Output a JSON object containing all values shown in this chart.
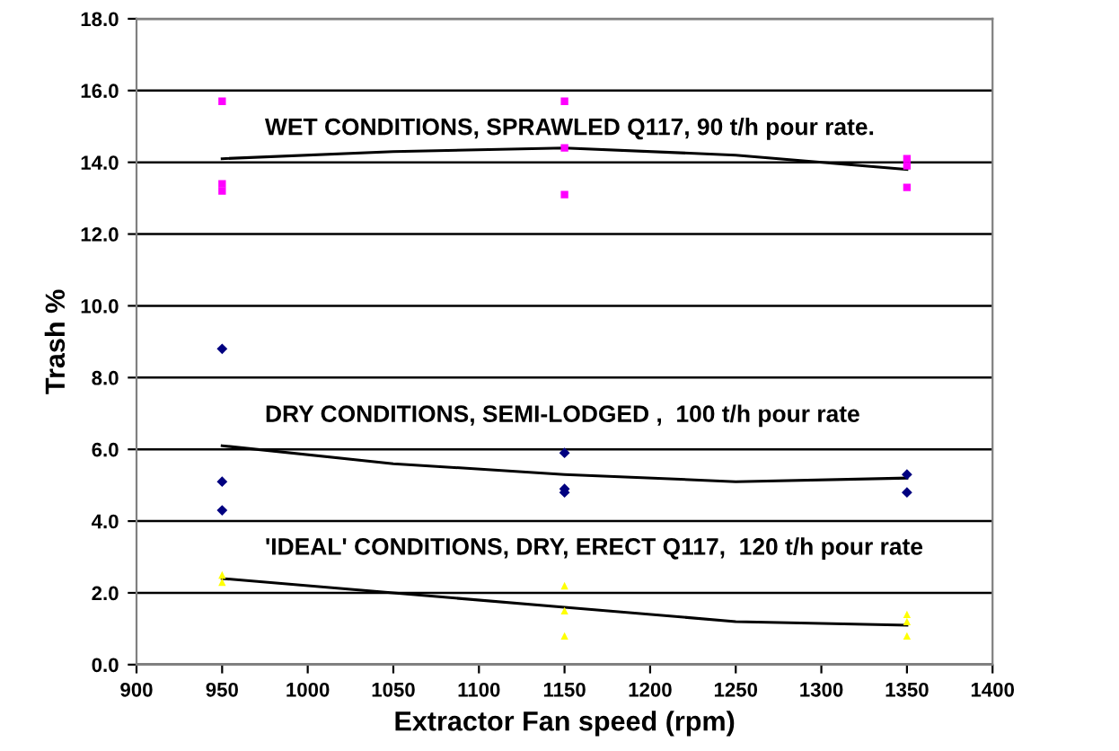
{
  "chart_data": {
    "type": "scatter",
    "xlabel": "Extractor Fan speed (rpm)",
    "ylabel": "Trash %",
    "xlim": [
      900,
      1400
    ],
    "xticks": [
      900,
      950,
      1000,
      1050,
      1100,
      1150,
      1200,
      1250,
      1300,
      1350,
      1400
    ],
    "ylim": [
      0,
      18
    ],
    "yticks": [
      {
        "value": 0,
        "label": "0.0"
      },
      {
        "value": 2,
        "label": "2.0"
      },
      {
        "value": 4,
        "label": "4.0"
      },
      {
        "value": 6,
        "label": "6.0"
      },
      {
        "value": 8,
        "label": "8.0"
      },
      {
        "value": 10,
        "label": "10.0"
      },
      {
        "value": 12,
        "label": "12.0"
      },
      {
        "value": 14,
        "label": "14.0"
      },
      {
        "value": 16,
        "label": "16.0"
      },
      {
        "value": 18,
        "label": "18.0"
      }
    ],
    "grid": "y",
    "legend": false,
    "series": [
      {
        "marker": "square",
        "color": "#ff00ff",
        "x": [
          950,
          950,
          950,
          1150,
          1150,
          1150,
          1350,
          1350,
          1350
        ],
        "values": [
          15.7,
          13.4,
          13.2,
          15.7,
          14.4,
          13.1,
          14.1,
          13.9,
          13.3
        ]
      },
      {
        "marker": "diamond",
        "color": "#000080",
        "x": [
          950,
          950,
          950,
          1150,
          1150,
          1150,
          1350,
          1350
        ],
        "values": [
          8.8,
          5.1,
          4.3,
          5.9,
          4.9,
          4.8,
          5.3,
          4.8
        ]
      },
      {
        "marker": "triangle",
        "color": "#ffff00",
        "x": [
          950,
          950,
          1150,
          1150,
          1150,
          1350,
          1350,
          1350
        ],
        "values": [
          2.5,
          2.3,
          2.2,
          1.5,
          0.8,
          1.4,
          1.2,
          0.8
        ]
      },
      {
        "type": "line",
        "marker": "none",
        "color": "#000000",
        "x": [
          950,
          1050,
          1150,
          1250,
          1350
        ],
        "values": [
          14.1,
          14.3,
          14.4,
          14.2,
          13.8
        ]
      },
      {
        "type": "line",
        "marker": "none",
        "color": "#000000",
        "x": [
          950,
          1050,
          1150,
          1250,
          1350
        ],
        "values": [
          6.1,
          5.6,
          5.3,
          5.1,
          5.2
        ]
      },
      {
        "type": "line",
        "marker": "none",
        "color": "#000000",
        "x": [
          950,
          1050,
          1150,
          1250,
          1350
        ],
        "values": [
          2.4,
          2.0,
          1.6,
          1.2,
          1.1
        ]
      }
    ],
    "annotations": [
      "WET CONDITIONS, SPRAWLED Q117, 90 t/h pour rate.",
      "DRY CONDITIONS, SEMI-LODGED ,  100 t/h pour rate",
      "'IDEAL' CONDITIONS, DRY, ERECT Q117,  120 t/h pour rate"
    ]
  }
}
